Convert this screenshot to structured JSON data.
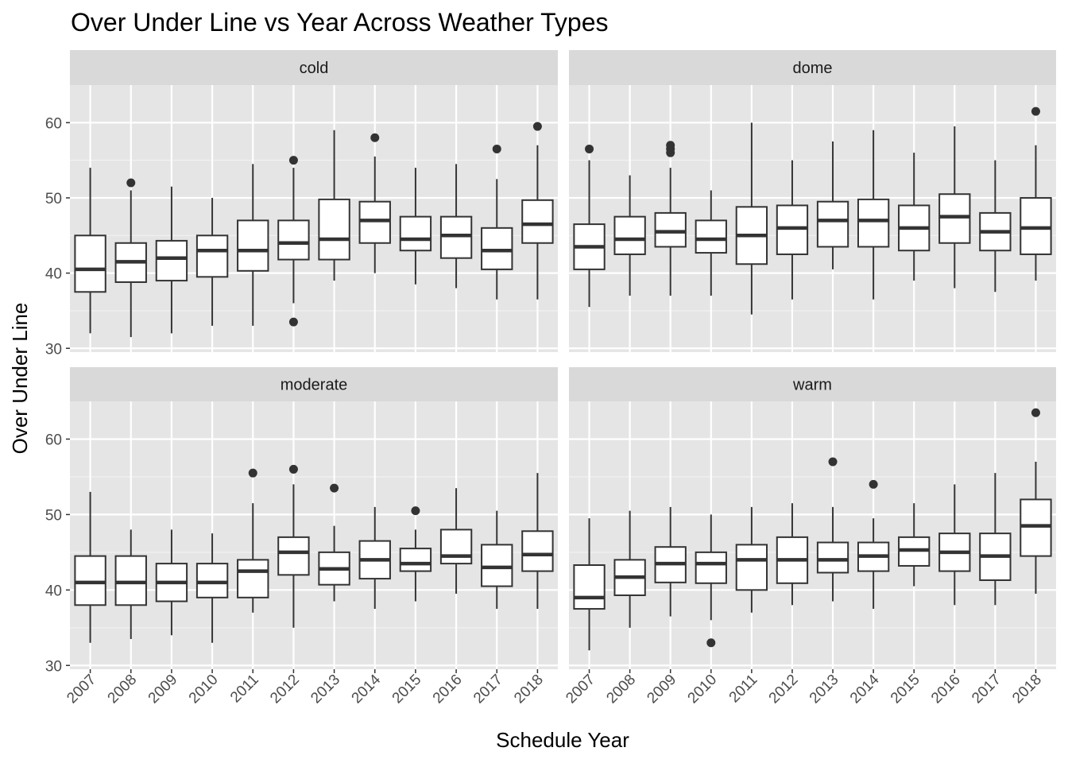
{
  "chart_data": {
    "type": "boxplot",
    "title": "Over Under Line vs Year Across Weather Types",
    "xlabel": "Schedule Year",
    "ylabel": "Over Under Line",
    "categories": [
      "2007",
      "2008",
      "2009",
      "2010",
      "2011",
      "2012",
      "2013",
      "2014",
      "2015",
      "2016",
      "2017",
      "2018"
    ],
    "yticks": [
      30,
      40,
      50,
      60
    ],
    "ylim": [
      29.5,
      65
    ],
    "grid": true,
    "facet_layout": "2x2",
    "colors": {
      "panel_bg": "#e5e5e5",
      "strip_bg": "#d9d9d9",
      "grid_major": "#ffffff",
      "box_fill": "#ffffff",
      "box_line": "#333333"
    },
    "panels": [
      {
        "name": "cold",
        "boxes": [
          {
            "x": "2007",
            "min": 32,
            "q1": 37.5,
            "median": 40.5,
            "q3": 45,
            "max": 54,
            "outliers": []
          },
          {
            "x": "2008",
            "min": 31.5,
            "q1": 38.8,
            "median": 41.5,
            "q3": 44,
            "max": 51,
            "outliers": [
              52
            ]
          },
          {
            "x": "2009",
            "min": 32,
            "q1": 39,
            "median": 42,
            "q3": 44.3,
            "max": 51.5,
            "outliers": []
          },
          {
            "x": "2010",
            "min": 33,
            "q1": 39.5,
            "median": 43,
            "q3": 45,
            "max": 50,
            "outliers": []
          },
          {
            "x": "2011",
            "min": 33,
            "q1": 40.3,
            "median": 43,
            "q3": 47,
            "max": 54.5,
            "outliers": []
          },
          {
            "x": "2012",
            "min": 36,
            "q1": 41.8,
            "median": 44,
            "q3": 47,
            "max": 54,
            "outliers": [
              55,
              33.5
            ]
          },
          {
            "x": "2013",
            "min": 39,
            "q1": 41.8,
            "median": 44.5,
            "q3": 49.8,
            "max": 59,
            "outliers": []
          },
          {
            "x": "2014",
            "min": 40,
            "q1": 44,
            "median": 47,
            "q3": 49.5,
            "max": 55.5,
            "outliers": [
              58
            ]
          },
          {
            "x": "2015",
            "min": 38.5,
            "q1": 43,
            "median": 44.5,
            "q3": 47.5,
            "max": 54,
            "outliers": []
          },
          {
            "x": "2016",
            "min": 38,
            "q1": 42,
            "median": 45,
            "q3": 47.5,
            "max": 54.5,
            "outliers": []
          },
          {
            "x": "2017",
            "min": 36.5,
            "q1": 40.5,
            "median": 43,
            "q3": 46,
            "max": 52.5,
            "outliers": [
              56.5
            ]
          },
          {
            "x": "2018",
            "min": 36.5,
            "q1": 44,
            "median": 46.5,
            "q3": 49.7,
            "max": 57,
            "outliers": [
              59.5
            ]
          }
        ]
      },
      {
        "name": "dome",
        "boxes": [
          {
            "x": "2007",
            "min": 35.5,
            "q1": 40.5,
            "median": 43.5,
            "q3": 46.5,
            "max": 55,
            "outliers": [
              56.5
            ]
          },
          {
            "x": "2008",
            "min": 37,
            "q1": 42.5,
            "median": 44.5,
            "q3": 47.5,
            "max": 53,
            "outliers": []
          },
          {
            "x": "2009",
            "min": 37,
            "q1": 43.5,
            "median": 45.5,
            "q3": 48,
            "max": 54,
            "outliers": [
              56,
              56.5,
              57
            ]
          },
          {
            "x": "2010",
            "min": 37,
            "q1": 42.7,
            "median": 44.5,
            "q3": 47,
            "max": 51,
            "outliers": []
          },
          {
            "x": "2011",
            "min": 34.5,
            "q1": 41.2,
            "median": 45,
            "q3": 48.8,
            "max": 60,
            "outliers": []
          },
          {
            "x": "2012",
            "min": 36.5,
            "q1": 42.5,
            "median": 46,
            "q3": 49,
            "max": 55,
            "outliers": []
          },
          {
            "x": "2013",
            "min": 40.5,
            "q1": 43.5,
            "median": 47,
            "q3": 49.5,
            "max": 57.5,
            "outliers": []
          },
          {
            "x": "2014",
            "min": 36.5,
            "q1": 43.5,
            "median": 47,
            "q3": 49.8,
            "max": 59,
            "outliers": []
          },
          {
            "x": "2015",
            "min": 39,
            "q1": 43,
            "median": 46,
            "q3": 49,
            "max": 56,
            "outliers": []
          },
          {
            "x": "2016",
            "min": 38,
            "q1": 44,
            "median": 47.5,
            "q3": 50.5,
            "max": 59.5,
            "outliers": []
          },
          {
            "x": "2017",
            "min": 37.5,
            "q1": 43,
            "median": 45.5,
            "q3": 48,
            "max": 55,
            "outliers": []
          },
          {
            "x": "2018",
            "min": 39,
            "q1": 42.5,
            "median": 46,
            "q3": 50,
            "max": 57,
            "outliers": [
              61.5
            ]
          }
        ]
      },
      {
        "name": "moderate",
        "boxes": [
          {
            "x": "2007",
            "min": 33,
            "q1": 38,
            "median": 41,
            "q3": 44.5,
            "max": 53,
            "outliers": []
          },
          {
            "x": "2008",
            "min": 33.5,
            "q1": 38,
            "median": 41,
            "q3": 44.5,
            "max": 48,
            "outliers": []
          },
          {
            "x": "2009",
            "min": 34,
            "q1": 38.5,
            "median": 41,
            "q3": 43.5,
            "max": 48,
            "outliers": []
          },
          {
            "x": "2010",
            "min": 33,
            "q1": 39,
            "median": 41,
            "q3": 43.5,
            "max": 47.5,
            "outliers": []
          },
          {
            "x": "2011",
            "min": 37,
            "q1": 39,
            "median": 42.5,
            "q3": 44,
            "max": 51.5,
            "outliers": [
              55.5
            ]
          },
          {
            "x": "2012",
            "min": 35,
            "q1": 42,
            "median": 45,
            "q3": 47,
            "max": 54,
            "outliers": [
              56
            ]
          },
          {
            "x": "2013",
            "min": 38.5,
            "q1": 40.7,
            "median": 42.8,
            "q3": 45,
            "max": 48.5,
            "outliers": [
              53.5
            ]
          },
          {
            "x": "2014",
            "min": 37.5,
            "q1": 41.5,
            "median": 44,
            "q3": 46.5,
            "max": 51,
            "outliers": []
          },
          {
            "x": "2015",
            "min": 38.5,
            "q1": 42.5,
            "median": 43.5,
            "q3": 45.5,
            "max": 48,
            "outliers": [
              50.5
            ]
          },
          {
            "x": "2016",
            "min": 39.5,
            "q1": 43.5,
            "median": 44.5,
            "q3": 48,
            "max": 53.5,
            "outliers": []
          },
          {
            "x": "2017",
            "min": 37.5,
            "q1": 40.5,
            "median": 43,
            "q3": 46,
            "max": 50.5,
            "outliers": []
          },
          {
            "x": "2018",
            "min": 37.5,
            "q1": 42.5,
            "median": 44.7,
            "q3": 47.8,
            "max": 55.5,
            "outliers": []
          }
        ]
      },
      {
        "name": "warm",
        "boxes": [
          {
            "x": "2007",
            "min": 32,
            "q1": 37.5,
            "median": 39,
            "q3": 43.3,
            "max": 49.5,
            "outliers": []
          },
          {
            "x": "2008",
            "min": 35,
            "q1": 39.3,
            "median": 41.7,
            "q3": 44,
            "max": 50.5,
            "outliers": []
          },
          {
            "x": "2009",
            "min": 36.5,
            "q1": 41,
            "median": 43.5,
            "q3": 45.7,
            "max": 51,
            "outliers": []
          },
          {
            "x": "2010",
            "min": 36,
            "q1": 40.9,
            "median": 43.5,
            "q3": 45,
            "max": 50,
            "outliers": [
              33
            ]
          },
          {
            "x": "2011",
            "min": 37,
            "q1": 40,
            "median": 44,
            "q3": 46,
            "max": 51,
            "outliers": []
          },
          {
            "x": "2012",
            "min": 38,
            "q1": 40.9,
            "median": 44,
            "q3": 47,
            "max": 51.5,
            "outliers": []
          },
          {
            "x": "2013",
            "min": 38.5,
            "q1": 42.3,
            "median": 44,
            "q3": 46.3,
            "max": 51,
            "outliers": [
              57
            ]
          },
          {
            "x": "2014",
            "min": 37.5,
            "q1": 42.5,
            "median": 44.5,
            "q3": 46.3,
            "max": 49.5,
            "outliers": [
              54
            ]
          },
          {
            "x": "2015",
            "min": 40.5,
            "q1": 43.2,
            "median": 45.3,
            "q3": 47,
            "max": 51.5,
            "outliers": []
          },
          {
            "x": "2016",
            "min": 38,
            "q1": 42.5,
            "median": 45,
            "q3": 47.5,
            "max": 54,
            "outliers": []
          },
          {
            "x": "2017",
            "min": 38,
            "q1": 41.3,
            "median": 44.5,
            "q3": 47.5,
            "max": 55.5,
            "outliers": []
          },
          {
            "x": "2018",
            "min": 39.5,
            "q1": 44.5,
            "median": 48.5,
            "q3": 52,
            "max": 57,
            "outliers": [
              63.5
            ]
          }
        ]
      }
    ]
  }
}
